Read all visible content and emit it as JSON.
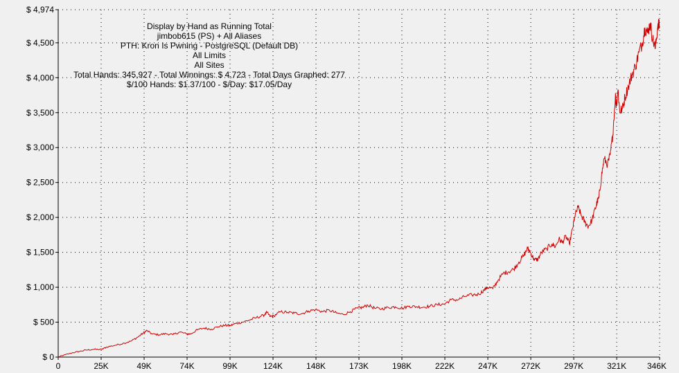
{
  "chart_data": {
    "type": "line",
    "header_lines": [
      "Display by Hand as Running Total",
      "jimbob615 (PS) + All Aliases",
      "PTH: Kron Is Pwning - PostgreSQL (Default DB)",
      "All Limits",
      "All Sites",
      "Total Hands: 345,927 - Total Winnings: $ 4,723 - Total Days Graphed: 277",
      "$/100 Hands: $1.37/100 - $/Day: $17.05/Day"
    ],
    "y_ticks": [
      {
        "value": 0,
        "label": "$ 0"
      },
      {
        "value": 500,
        "label": "$ 500"
      },
      {
        "value": 1000,
        "label": "$ 1,000"
      },
      {
        "value": 1500,
        "label": "$ 1,500"
      },
      {
        "value": 2000,
        "label": "$ 2,000"
      },
      {
        "value": 2500,
        "label": "$ 2,500"
      },
      {
        "value": 3000,
        "label": "$ 3,000"
      },
      {
        "value": 3500,
        "label": "$ 3,500"
      },
      {
        "value": 4000,
        "label": "$ 4,000"
      },
      {
        "value": 4500,
        "label": "$ 4,500"
      },
      {
        "value": 4974,
        "label": "$ 4,974"
      }
    ],
    "x_ticks": [
      {
        "value": 0,
        "label": "0"
      },
      {
        "value": 24712,
        "label": "25K"
      },
      {
        "value": 49424,
        "label": "49K"
      },
      {
        "value": 74136,
        "label": "74K"
      },
      {
        "value": 98848,
        "label": "99K"
      },
      {
        "value": 123560,
        "label": "124K"
      },
      {
        "value": 148272,
        "label": "148K"
      },
      {
        "value": 172984,
        "label": "173K"
      },
      {
        "value": 197696,
        "label": "198K"
      },
      {
        "value": 222408,
        "label": "222K"
      },
      {
        "value": 247120,
        "label": "247K"
      },
      {
        "value": 271832,
        "label": "272K"
      },
      {
        "value": 296544,
        "label": "297K"
      },
      {
        "value": 321256,
        "label": "321K"
      },
      {
        "value": 345927,
        "label": "346K"
      }
    ],
    "xlim": [
      0,
      345927
    ],
    "ylim": [
      0,
      4974
    ],
    "grid": "dotted",
    "series": [
      {
        "color": "#cc0000",
        "x": [
          0,
          3000,
          8000,
          12000,
          16000,
          20000,
          25000,
          28000,
          33000,
          38000,
          42000,
          46000,
          49000,
          51000,
          54000,
          58000,
          62000,
          66000,
          70000,
          74000,
          76000,
          80000,
          84000,
          88000,
          92000,
          96000,
          99000,
          102000,
          106000,
          110000,
          114000,
          118000,
          120000,
          122000,
          124000,
          128000,
          132000,
          136000,
          140000,
          144000,
          148000,
          152000,
          156000,
          160000,
          164000,
          168000,
          172000,
          175000,
          178000,
          182000,
          186000,
          190000,
          194000,
          198000,
          202000,
          206000,
          210000,
          214000,
          218000,
          222000,
          226000,
          230000,
          234000,
          238000,
          242000,
          245000,
          247000,
          250000,
          253000,
          256000,
          259000,
          262000,
          265000,
          268000,
          270000,
          272000,
          274000,
          276000,
          278000,
          281000,
          284000,
          286000,
          288000,
          290000,
          292000,
          294000,
          296000,
          297000,
          299000,
          301000,
          303000,
          305000,
          307000,
          309000,
          310000,
          311000,
          312500,
          314000,
          316000,
          317500,
          319000,
          320500,
          321000,
          322000,
          323000,
          324500,
          326000,
          328000,
          330000,
          332000,
          334000,
          336000,
          337500,
          339000,
          340500,
          342000,
          343500,
          345000,
          345927
        ],
        "y": [
          0,
          25,
          60,
          80,
          100,
          110,
          110,
          145,
          170,
          200,
          230,
          290,
          345,
          380,
          330,
          320,
          335,
          320,
          360,
          330,
          330,
          390,
          415,
          400,
          435,
          455,
          450,
          480,
          500,
          530,
          565,
          595,
          640,
          580,
          590,
          650,
          640,
          630,
          620,
          660,
          680,
          650,
          670,
          630,
          610,
          650,
          700,
          710,
          745,
          700,
          690,
          710,
          720,
          700,
          730,
          720,
          715,
          730,
          750,
          760,
          820,
          820,
          870,
          890,
          900,
          960,
          1000,
          980,
          1100,
          1200,
          1220,
          1260,
          1360,
          1460,
          1560,
          1480,
          1390,
          1400,
          1500,
          1550,
          1620,
          1580,
          1690,
          1640,
          1730,
          1620,
          1850,
          2000,
          2150,
          2020,
          1930,
          1870,
          1960,
          2130,
          2220,
          2280,
          2590,
          2840,
          2760,
          2890,
          3180,
          3750,
          3600,
          3830,
          3520,
          3550,
          3720,
          3880,
          4040,
          4160,
          4360,
          4500,
          4720,
          4640,
          4780,
          4550,
          4420,
          4780,
          4723
        ]
      }
    ]
  }
}
